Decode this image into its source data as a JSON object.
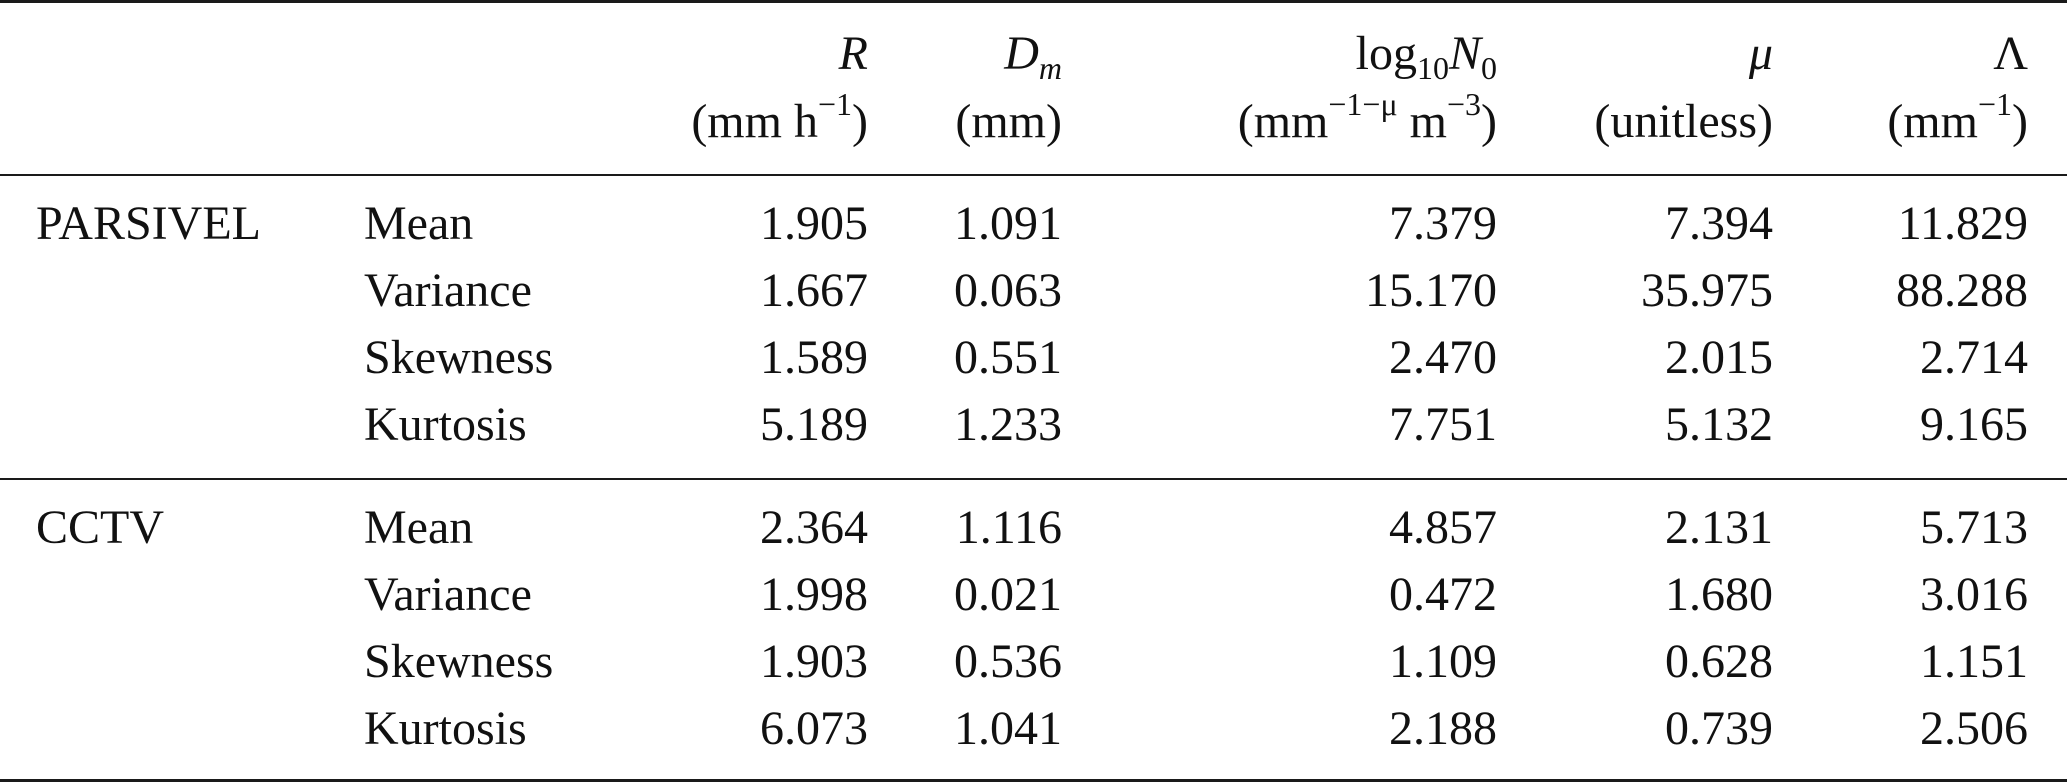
{
  "columns": [
    {
      "symbol": "R",
      "unit": {
        "pre": "(mm h",
        "sup": "−1",
        "post": ")"
      }
    },
    {
      "symbol": "D",
      "symbol_sub": "m",
      "unit": {
        "pre": "(mm)",
        "sup": "",
        "post": ""
      }
    },
    {
      "symbol_pre": "log",
      "symbol_pre_sub": "10",
      "symbol": "N",
      "symbol_sub": "0",
      "unit": {
        "pre": "(mm",
        "sup": "−1−μ",
        "mid": " m",
        "sup2": "−3",
        "post": ")"
      }
    },
    {
      "symbol": "μ",
      "unit": {
        "pre": "(unitless)",
        "sup": "",
        "post": ""
      }
    },
    {
      "symbol": "Λ",
      "unit": {
        "pre": "(mm",
        "sup": "−1",
        "post": ")"
      }
    }
  ],
  "groups": [
    {
      "name": "PARSIVEL",
      "rows": [
        {
          "stat": "Mean",
          "values": [
            "1.905",
            "1.091",
            "7.379",
            "7.394",
            "11.829"
          ]
        },
        {
          "stat": "Variance",
          "values": [
            "1.667",
            "0.063",
            "15.170",
            "35.975",
            "88.288"
          ]
        },
        {
          "stat": "Skewness",
          "values": [
            "1.589",
            "0.551",
            "2.470",
            "2.015",
            "2.714"
          ]
        },
        {
          "stat": "Kurtosis",
          "values": [
            "5.189",
            "1.233",
            "7.751",
            "5.132",
            "9.165"
          ]
        }
      ]
    },
    {
      "name": "CCTV",
      "rows": [
        {
          "stat": "Mean",
          "values": [
            "2.364",
            "1.116",
            "4.857",
            "2.131",
            "5.713"
          ]
        },
        {
          "stat": "Variance",
          "values": [
            "1.998",
            "0.021",
            "0.472",
            "1.680",
            "3.016"
          ]
        },
        {
          "stat": "Skewness",
          "values": [
            "1.903",
            "0.536",
            "1.109",
            "0.628",
            "1.151"
          ]
        },
        {
          "stat": "Kurtosis",
          "values": [
            "6.073",
            "1.041",
            "2.188",
            "0.739",
            "2.506"
          ]
        }
      ]
    }
  ]
}
